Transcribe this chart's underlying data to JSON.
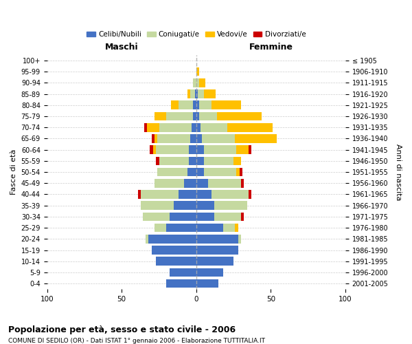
{
  "age_groups": [
    "0-4",
    "5-9",
    "10-14",
    "15-19",
    "20-24",
    "25-29",
    "30-34",
    "35-39",
    "40-44",
    "45-49",
    "50-54",
    "55-59",
    "60-64",
    "65-69",
    "70-74",
    "75-79",
    "80-84",
    "85-89",
    "90-94",
    "95-99",
    "100+"
  ],
  "birth_years": [
    "2001-2005",
    "1996-2000",
    "1991-1995",
    "1986-1990",
    "1981-1985",
    "1976-1980",
    "1971-1975",
    "1966-1970",
    "1961-1965",
    "1956-1960",
    "1951-1955",
    "1946-1950",
    "1941-1945",
    "1936-1940",
    "1931-1935",
    "1926-1930",
    "1921-1925",
    "1916-1920",
    "1911-1915",
    "1906-1910",
    "≤ 1905"
  ],
  "male": {
    "celibi": [
      20,
      18,
      27,
      30,
      32,
      20,
      18,
      15,
      12,
      8,
      6,
      5,
      5,
      4,
      3,
      2,
      2,
      1,
      0,
      0,
      0
    ],
    "coniugati": [
      0,
      0,
      0,
      0,
      2,
      8,
      18,
      22,
      25,
      20,
      20,
      20,
      22,
      22,
      22,
      18,
      10,
      3,
      2,
      0,
      0
    ],
    "vedovi": [
      0,
      0,
      0,
      0,
      0,
      0,
      0,
      0,
      0,
      0,
      0,
      0,
      2,
      2,
      8,
      8,
      5,
      2,
      0,
      0,
      0
    ],
    "divorziati": [
      0,
      0,
      0,
      0,
      0,
      0,
      0,
      0,
      2,
      0,
      0,
      2,
      2,
      2,
      2,
      0,
      0,
      0,
      0,
      0,
      0
    ]
  },
  "female": {
    "nubili": [
      15,
      18,
      25,
      28,
      28,
      18,
      12,
      12,
      10,
      8,
      5,
      5,
      5,
      4,
      3,
      2,
      2,
      1,
      0,
      0,
      0
    ],
    "coniugate": [
      0,
      0,
      0,
      0,
      2,
      8,
      18,
      22,
      25,
      22,
      22,
      20,
      22,
      22,
      18,
      12,
      8,
      4,
      2,
      0,
      0
    ],
    "vedove": [
      0,
      0,
      0,
      0,
      0,
      2,
      0,
      0,
      0,
      0,
      2,
      5,
      8,
      28,
      30,
      30,
      20,
      8,
      4,
      2,
      0
    ],
    "divorziate": [
      0,
      0,
      0,
      0,
      0,
      0,
      2,
      0,
      2,
      2,
      2,
      0,
      2,
      0,
      0,
      0,
      0,
      0,
      0,
      0,
      0
    ]
  },
  "colors": {
    "celibi": "#4472c4",
    "coniugati": "#c5d9a0",
    "vedovi": "#ffc000",
    "divorziati": "#cc0000"
  },
  "title": "Popolazione per età, sesso e stato civile - 2006",
  "subtitle": "COMUNE DI SEDILO (OR) - Dati ISTAT 1° gennaio 2006 - Elaborazione TUTTITALIA.IT",
  "xlabel_left": "Maschi",
  "xlabel_right": "Femmine",
  "ylabel_left": "Fasce di età",
  "ylabel_right": "Anni di nascita",
  "xlim": 100,
  "legend_labels": [
    "Celibi/Nubili",
    "Coniugati/e",
    "Vedovi/e",
    "Divorziati/e"
  ],
  "background_color": "#ffffff",
  "grid_color": "#cccccc"
}
